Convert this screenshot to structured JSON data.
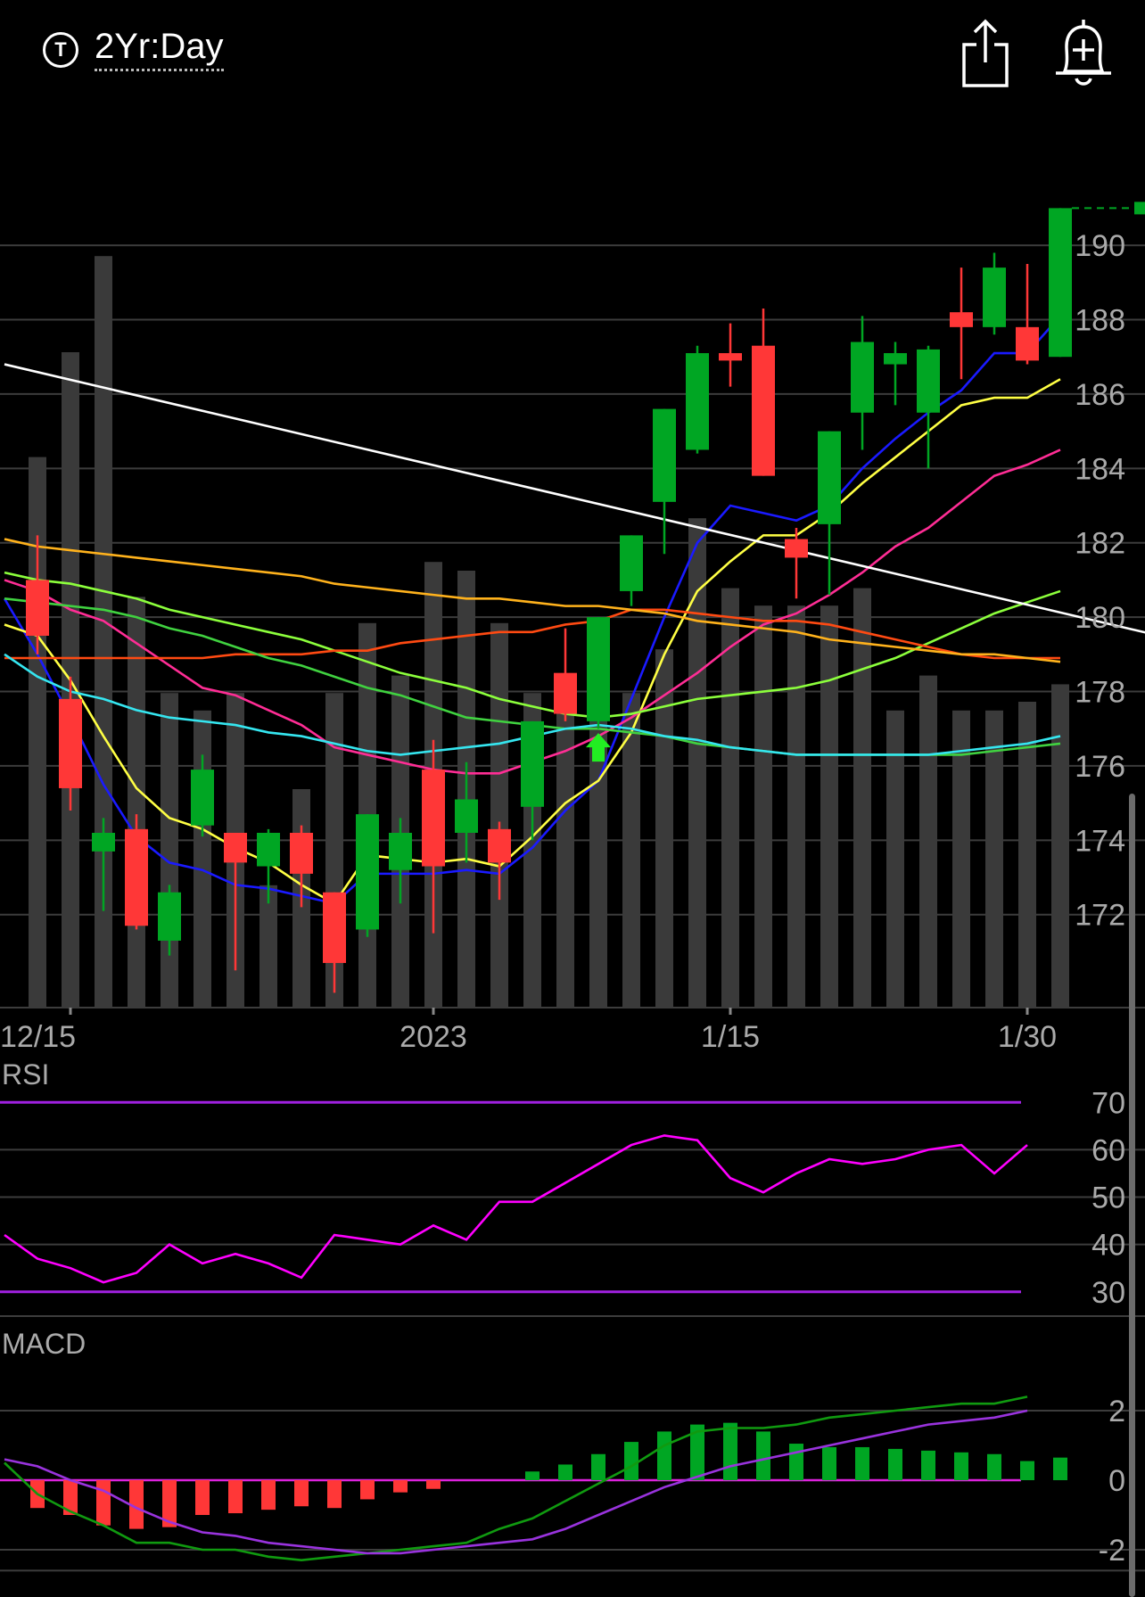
{
  "header": {
    "timeframe": "2Yr:Day",
    "ticker_icon": "T",
    "share_icon": "share-icon",
    "alert_icon": "bell-plus-icon"
  },
  "colors": {
    "up": "#00a623",
    "down": "#ff3737",
    "volume": "#3a3a3a",
    "ma_blue": "#1a1aff",
    "ma_yellow": "#ffff44",
    "ma_pink": "#ff2d95",
    "ma_lime": "#8cff3c",
    "ma_orange": "#ff4a12",
    "ma_gold": "#ffb21c",
    "ma_green": "#40d240",
    "ma_cyan": "#35e6f0",
    "trendline": "#ffffff",
    "rsi_line": "#ff00ff",
    "rsi_band": "#a020e0",
    "macd_line": "#109a10",
    "signal_line": "#9933dd",
    "zero_line": "#dd22dd",
    "grid": "#3c3c3c"
  },
  "chart_data": [
    {
      "type": "candlestick",
      "x_labels": [
        "12/15",
        "2023",
        "1/15",
        "1/30"
      ],
      "x_label_index": [
        1,
        12,
        21,
        30
      ],
      "y_ticks": [
        172,
        174,
        176,
        178,
        180,
        182,
        184,
        186,
        188,
        190
      ],
      "ylim": [
        169.5,
        193
      ],
      "last_price_marker": 191.0,
      "candles": [
        {
          "o": 181.0,
          "h": 182.2,
          "l": 179.0,
          "c": 179.5
        },
        {
          "o": 177.8,
          "h": 178.4,
          "l": 174.8,
          "c": 175.4
        },
        {
          "o": 173.7,
          "h": 174.6,
          "l": 172.1,
          "c": 174.2
        },
        {
          "o": 174.3,
          "h": 174.7,
          "l": 171.6,
          "c": 171.7
        },
        {
          "o": 171.3,
          "h": 172.8,
          "l": 170.9,
          "c": 172.6
        },
        {
          "o": 174.4,
          "h": 176.3,
          "l": 174.1,
          "c": 175.9
        },
        {
          "o": 174.2,
          "h": 174.2,
          "l": 170.5,
          "c": 173.4
        },
        {
          "o": 173.3,
          "h": 174.3,
          "l": 172.3,
          "c": 174.2
        },
        {
          "o": 174.2,
          "h": 174.4,
          "l": 172.2,
          "c": 173.1
        },
        {
          "o": 172.6,
          "h": 172.6,
          "l": 169.9,
          "c": 170.7
        },
        {
          "o": 171.6,
          "h": 174.7,
          "l": 171.4,
          "c": 174.7
        },
        {
          "o": 173.2,
          "h": 174.6,
          "l": 172.3,
          "c": 174.2
        },
        {
          "o": 175.9,
          "h": 176.7,
          "l": 171.5,
          "c": 173.3
        },
        {
          "o": 174.2,
          "h": 176.1,
          "l": 173.4,
          "c": 175.1
        },
        {
          "o": 174.3,
          "h": 174.5,
          "l": 172.4,
          "c": 173.4
        },
        {
          "o": 174.9,
          "h": 177.2,
          "l": 174.0,
          "c": 177.2
        },
        {
          "o": 178.5,
          "h": 179.7,
          "l": 177.2,
          "c": 177.4
        },
        {
          "o": 177.2,
          "h": 180.0,
          "l": 177.0,
          "c": 180.0
        },
        {
          "o": 180.7,
          "h": 182.2,
          "l": 180.3,
          "c": 182.2
        },
        {
          "o": 183.1,
          "h": 185.6,
          "l": 181.7,
          "c": 185.6
        },
        {
          "o": 184.5,
          "h": 187.3,
          "l": 184.4,
          "c": 187.1
        },
        {
          "o": 187.1,
          "h": 187.9,
          "l": 186.2,
          "c": 186.9
        },
        {
          "o": 187.3,
          "h": 188.3,
          "l": 183.8,
          "c": 183.8
        },
        {
          "o": 182.1,
          "h": 182.4,
          "l": 180.5,
          "c": 181.6
        },
        {
          "o": 182.5,
          "h": 185.0,
          "l": 180.6,
          "c": 185.0
        },
        {
          "o": 185.5,
          "h": 188.1,
          "l": 184.5,
          "c": 187.4
        },
        {
          "o": 186.8,
          "h": 187.4,
          "l": 185.7,
          "c": 187.1
        },
        {
          "o": 185.5,
          "h": 187.3,
          "l": 184.0,
          "c": 187.2
        },
        {
          "o": 188.2,
          "h": 189.4,
          "l": 186.4,
          "c": 187.8
        },
        {
          "o": 187.8,
          "h": 189.8,
          "l": 187.6,
          "c": 189.4
        },
        {
          "o": 187.8,
          "h": 189.5,
          "l": 186.8,
          "c": 186.9
        },
        {
          "o": 187.0,
          "h": 191.0,
          "l": 187.0,
          "c": 191.0
        }
      ],
      "volume_rel": [
        0.63,
        0.75,
        0.86,
        0.47,
        0.36,
        0.34,
        0.36,
        0.14,
        0.25,
        0.36,
        0.44,
        0.38,
        0.51,
        0.5,
        0.44,
        0.36,
        0.38,
        0.4,
        0.36,
        0.41,
        0.56,
        0.48,
        0.46,
        0.46,
        0.46,
        0.48,
        0.34,
        0.38,
        0.34,
        0.34,
        0.35,
        0.37
      ],
      "buy_arrow": {
        "index": 17,
        "price": 176.5
      },
      "trendline": {
        "from": {
          "index": -1,
          "price": 186.8
        },
        "to": {
          "index": 34,
          "price": 179.5
        }
      },
      "moving_averages": [
        {
          "color_key": "ma_blue",
          "values": [
            180.5,
            179.0,
            177.3,
            175.5,
            174.1,
            173.4,
            173.2,
            172.8,
            172.7,
            172.5,
            172.3,
            173.1,
            173.1,
            173.1,
            173.2,
            173.1,
            173.8,
            174.8,
            175.6,
            177.8,
            180.0,
            182.0,
            183.0,
            182.8,
            182.6,
            183.0,
            184.0,
            184.8,
            185.5,
            186.1,
            187.1,
            187.1,
            188.1
          ]
        },
        {
          "color_key": "ma_yellow",
          "values": [
            179.8,
            179.5,
            178.3,
            176.8,
            175.4,
            174.6,
            174.3,
            173.8,
            173.4,
            172.8,
            172.3,
            173.6,
            173.5,
            173.4,
            173.5,
            173.3,
            174.1,
            175.0,
            175.6,
            176.9,
            179.0,
            180.7,
            181.5,
            182.2,
            182.2,
            182.8,
            183.6,
            184.3,
            185.0,
            185.7,
            185.9,
            185.9,
            186.4
          ]
        },
        {
          "color_key": "ma_pink",
          "values": [
            181.0,
            180.7,
            180.2,
            179.9,
            179.3,
            178.7,
            178.1,
            177.9,
            177.5,
            177.1,
            176.5,
            176.3,
            176.1,
            175.9,
            175.8,
            175.8,
            176.1,
            176.4,
            176.8,
            177.3,
            177.9,
            178.5,
            179.2,
            179.8,
            180.1,
            180.6,
            181.2,
            181.9,
            182.4,
            183.1,
            183.8,
            184.1,
            184.5
          ]
        },
        {
          "color_key": "ma_lime",
          "values": [
            181.2,
            181.0,
            180.9,
            180.7,
            180.5,
            180.2,
            180.0,
            179.8,
            179.6,
            179.4,
            179.1,
            178.8,
            178.5,
            178.3,
            178.1,
            177.8,
            177.6,
            177.4,
            177.3,
            177.4,
            177.6,
            177.8,
            177.9,
            178.0,
            178.1,
            178.3,
            178.6,
            178.9,
            179.3,
            179.7,
            180.1,
            180.4,
            180.7
          ]
        },
        {
          "color_key": "ma_orange",
          "values": [
            178.9,
            178.9,
            178.9,
            178.9,
            178.9,
            178.9,
            178.9,
            179.0,
            179.0,
            179.0,
            179.1,
            179.1,
            179.3,
            179.4,
            179.5,
            179.6,
            179.6,
            179.8,
            179.9,
            180.2,
            180.2,
            180.1,
            180.0,
            179.9,
            179.9,
            179.8,
            179.6,
            179.4,
            179.2,
            179.0,
            178.9,
            178.9,
            178.9
          ]
        },
        {
          "color_key": "ma_gold",
          "values": [
            182.1,
            181.9,
            181.8,
            181.7,
            181.6,
            181.5,
            181.4,
            181.3,
            181.2,
            181.1,
            180.9,
            180.8,
            180.7,
            180.6,
            180.5,
            180.5,
            180.4,
            180.3,
            180.3,
            180.2,
            180.1,
            179.9,
            179.8,
            179.7,
            179.6,
            179.4,
            179.3,
            179.2,
            179.1,
            179.0,
            179.0,
            178.9,
            178.8
          ]
        },
        {
          "color_key": "ma_green",
          "values": [
            180.5,
            180.4,
            180.3,
            180.2,
            180.0,
            179.7,
            179.5,
            179.2,
            178.9,
            178.7,
            178.4,
            178.1,
            177.9,
            177.6,
            177.3,
            177.2,
            177.1,
            177.0,
            177.0,
            176.9,
            176.8,
            176.6,
            176.5,
            176.4,
            176.3,
            176.3,
            176.3,
            176.3,
            176.3,
            176.3,
            176.4,
            176.5,
            176.6
          ]
        },
        {
          "color_key": "ma_cyan",
          "values": [
            179.0,
            178.4,
            178.0,
            177.8,
            177.5,
            177.3,
            177.2,
            177.1,
            176.9,
            176.8,
            176.6,
            176.4,
            176.3,
            176.4,
            176.5,
            176.6,
            176.8,
            177.0,
            177.1,
            177.0,
            176.8,
            176.7,
            176.5,
            176.4,
            176.3,
            176.3,
            176.3,
            176.3,
            176.3,
            176.4,
            176.5,
            176.6,
            176.8
          ]
        }
      ]
    },
    {
      "type": "line",
      "title": "RSI",
      "y_ticks": [
        30,
        40,
        50,
        60,
        70
      ],
      "ylim": [
        26,
        74
      ],
      "bands": [
        30,
        70
      ],
      "values": [
        42,
        37,
        35,
        32,
        34,
        40,
        36,
        38,
        36,
        33,
        42,
        41,
        40,
        44,
        41,
        49,
        49,
        53,
        57,
        61,
        63,
        62,
        54,
        51,
        55,
        58,
        57,
        58,
        60,
        61,
        55,
        61
      ]
    },
    {
      "type": "bar+line",
      "title": "MACD",
      "y_ticks": [
        -2,
        0,
        2
      ],
      "ylim": [
        -3.0,
        3.0
      ],
      "histogram": [
        -0.8,
        -1.0,
        -1.3,
        -1.4,
        -1.35,
        -1.0,
        -0.95,
        -0.85,
        -0.75,
        -0.8,
        -0.55,
        -0.35,
        -0.25,
        0.0,
        0.0,
        0.25,
        0.45,
        0.75,
        1.1,
        1.4,
        1.6,
        1.65,
        1.4,
        1.05,
        0.95,
        0.95,
        0.9,
        0.85,
        0.8,
        0.75,
        0.55,
        0.65
      ],
      "macd_line": [
        0.5,
        -0.4,
        -0.9,
        -1.3,
        -1.8,
        -1.8,
        -2.0,
        -2.0,
        -2.2,
        -2.3,
        -2.2,
        -2.1,
        -2.0,
        -1.9,
        -1.8,
        -1.4,
        -1.1,
        -0.6,
        -0.1,
        0.4,
        1.0,
        1.4,
        1.5,
        1.5,
        1.6,
        1.8,
        1.9,
        2.0,
        2.1,
        2.2,
        2.2,
        2.4
      ],
      "signal_line": [
        0.6,
        0.4,
        0.0,
        -0.3,
        -0.8,
        -1.2,
        -1.5,
        -1.6,
        -1.8,
        -1.9,
        -2.0,
        -2.1,
        -2.1,
        -2.0,
        -1.9,
        -1.8,
        -1.7,
        -1.4,
        -1.0,
        -0.6,
        -0.2,
        0.1,
        0.4,
        0.6,
        0.8,
        1.0,
        1.2,
        1.4,
        1.6,
        1.7,
        1.8,
        2.0
      ]
    }
  ]
}
